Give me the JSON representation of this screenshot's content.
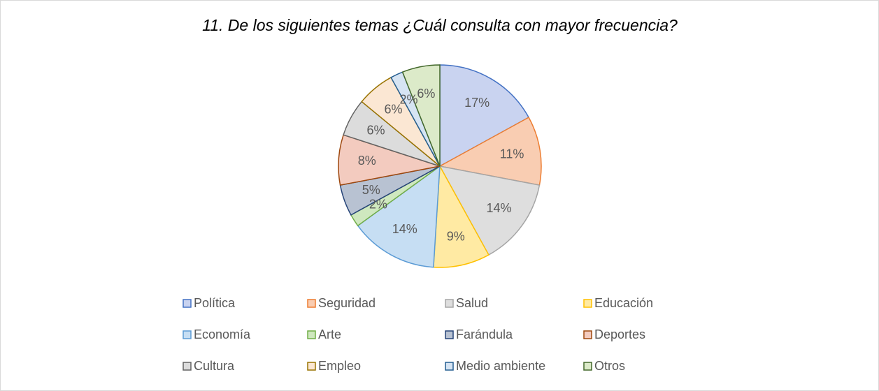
{
  "chart_data": {
    "type": "pie",
    "title": "11. De los siguientes temas ¿Cuál consulta con mayor frecuencia?",
    "categories": [
      "Política",
      "Seguridad",
      "Salud",
      "Educación",
      "Economía",
      "Arte",
      "Farándula",
      "Deportes",
      "Cultura",
      "Empleo",
      "Medio ambiente",
      "Otros"
    ],
    "values": [
      17,
      11,
      14,
      9,
      14,
      2,
      5,
      8,
      6,
      6,
      2,
      6
    ],
    "value_labels": [
      "17%",
      "11%",
      "14%",
      "9%",
      "14%",
      "2%",
      "5%",
      "8%",
      "6%",
      "6%",
      "2%",
      "6%"
    ],
    "colors": [
      "#c9d3f0",
      "#f9cdb2",
      "#dedede",
      "#ffeaa3",
      "#c6def3",
      "#cfe8bf",
      "#b8c2d2",
      "#f3cbbf",
      "#dcdcdc",
      "#fbe7d3",
      "#d6e4f3",
      "#dceac9"
    ],
    "edgecolors": [
      "#4472c4",
      "#ed7d31",
      "#a5a5a5",
      "#ffc000",
      "#5b9bd5",
      "#70ad47",
      "#264478",
      "#9e480e",
      "#636363",
      "#997300",
      "#255e91",
      "#43682b"
    ],
    "legend": "bottom"
  }
}
